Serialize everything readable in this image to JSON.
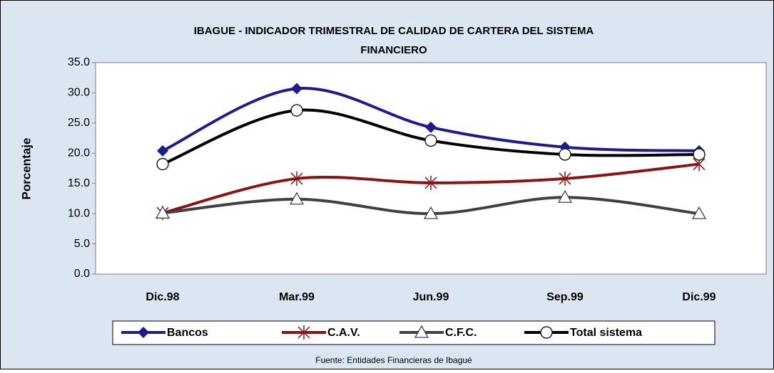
{
  "chart_data": {
    "type": "line",
    "title": [
      "IBAGUE - INDICADOR TRIMESTRAL DE CALIDAD DE CARTERA DEL SISTEMA",
      "FINANCIERO"
    ],
    "y_label": "Porcentaje",
    "source": "Fuente: Entidades Financieras de Ibagué",
    "categories": [
      "Dic.98",
      "Mar.99",
      "Jun.99",
      "Sep.99",
      "Dic.99"
    ],
    "series": [
      {
        "name": "Bancos",
        "color": "#1c1c8c",
        "marker": "diamond",
        "values": [
          20.4,
          30.7,
          24.3,
          21.0,
          20.4
        ]
      },
      {
        "name": "C.A.V.",
        "color": "#8b1414",
        "marker": "star",
        "values": [
          10.1,
          15.8,
          15.1,
          15.8,
          18.2
        ]
      },
      {
        "name": "C.F.C.",
        "color": "#404040",
        "marker": "triangle",
        "values": [
          10.1,
          12.4,
          10.0,
          12.7,
          10.0
        ]
      },
      {
        "name": "Total sistema",
        "color": "#000000",
        "marker": "circle",
        "values": [
          18.2,
          27.1,
          22.1,
          19.8,
          19.8
        ]
      }
    ],
    "ylim": [
      0,
      35
    ],
    "yticks": [
      {
        "value": 0,
        "label": "0.0"
      },
      {
        "value": 5,
        "label": "5.0"
      },
      {
        "value": 10,
        "label": "10.0"
      },
      {
        "value": 15,
        "label": "15.0"
      },
      {
        "value": 20,
        "label": "20.0"
      },
      {
        "value": 25,
        "label": "25.0"
      },
      {
        "value": 30,
        "label": "30.0"
      },
      {
        "value": 35,
        "label": "35.0"
      }
    ],
    "grid": false,
    "legend": "bottom"
  }
}
